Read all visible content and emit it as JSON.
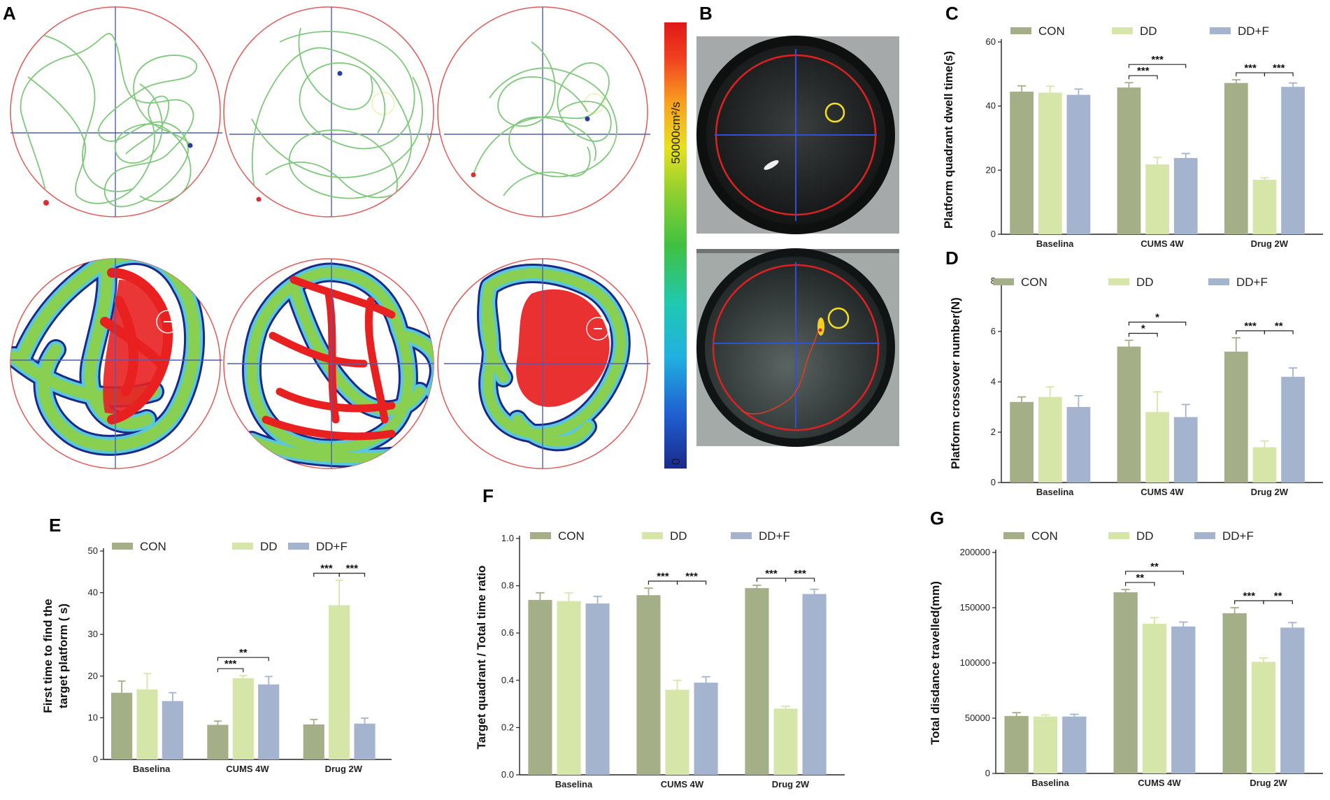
{
  "panels": {
    "A": "A",
    "B": "B",
    "C": "C",
    "D": "D",
    "E": "E",
    "F": "F",
    "G": "G"
  },
  "colorbar": {
    "max_label": "50000cm²/s",
    "min_label": "0"
  },
  "legend": [
    "CON",
    "DD",
    "DD+F"
  ],
  "colors": {
    "CON": "#a4af88",
    "DD": "#d6e6a8",
    "DDF": "#a4b4cf",
    "track": "#7ec87a",
    "pool_border": "#e05a5a",
    "axis_line": "#4f5fb0"
  },
  "chart_data": [
    {
      "id": "C",
      "type": "bar",
      "ylabel": "Platform quadrant dwell time(s)",
      "categories": [
        "Baselina",
        "CUMS 4W",
        "Drug 2W"
      ],
      "ylim": [
        0,
        60
      ],
      "yticks": [
        0,
        20,
        40,
        60
      ],
      "series": [
        {
          "name": "CON",
          "values": [
            44.5,
            45.8,
            47.2
          ],
          "errors": [
            1.8,
            1.5,
            1.0
          ]
        },
        {
          "name": "DD",
          "values": [
            44.2,
            21.8,
            17.0
          ],
          "errors": [
            2.0,
            2.2,
            0.6
          ]
        },
        {
          "name": "DD+F",
          "values": [
            43.5,
            23.8,
            46.0
          ],
          "errors": [
            1.8,
            1.4,
            1.2
          ]
        }
      ],
      "significance": [
        {
          "group": 1,
          "from": 0,
          "to": 1,
          "label": "***",
          "level": 1
        },
        {
          "group": 1,
          "from": 0,
          "to": 2,
          "label": "***",
          "level": 2
        },
        {
          "group": 2,
          "from": 0,
          "to": 1,
          "label": "***",
          "level": 1
        },
        {
          "group": 2,
          "from": 1,
          "to": 2,
          "label": "***",
          "level": 1
        }
      ]
    },
    {
      "id": "D",
      "type": "bar",
      "ylabel": "Platform crossover number(N)",
      "categories": [
        "Baselina",
        "CUMS 4W",
        "Drug 2W"
      ],
      "ylim": [
        0,
        8
      ],
      "yticks": [
        0,
        2,
        4,
        6,
        8
      ],
      "series": [
        {
          "name": "CON",
          "values": [
            3.2,
            5.4,
            5.2
          ],
          "errors": [
            0.2,
            0.25,
            0.55
          ]
        },
        {
          "name": "DD",
          "values": [
            3.4,
            2.8,
            1.4
          ],
          "errors": [
            0.4,
            0.8,
            0.25
          ]
        },
        {
          "name": "DD+F",
          "values": [
            3.0,
            2.6,
            4.2
          ],
          "errors": [
            0.45,
            0.5,
            0.35
          ]
        }
      ],
      "significance": [
        {
          "group": 1,
          "from": 0,
          "to": 1,
          "label": "*",
          "level": 1
        },
        {
          "group": 1,
          "from": 0,
          "to": 2,
          "label": "*",
          "level": 2
        },
        {
          "group": 2,
          "from": 0,
          "to": 1,
          "label": "***",
          "level": 1
        },
        {
          "group": 2,
          "from": 1,
          "to": 2,
          "label": "**",
          "level": 1
        }
      ]
    },
    {
      "id": "E",
      "type": "bar",
      "ylabel": [
        "First time to find the",
        "target platform ( s)"
      ],
      "categories": [
        "Baselina",
        "CUMS 4W",
        "Drug 2W"
      ],
      "ylim": [
        0,
        50
      ],
      "yticks": [
        0,
        10,
        20,
        30,
        40,
        50
      ],
      "series": [
        {
          "name": "CON",
          "values": [
            16.0,
            8.3,
            8.4
          ],
          "errors": [
            2.8,
            0.9,
            1.2
          ]
        },
        {
          "name": "DD",
          "values": [
            16.8,
            19.5,
            37.0
          ],
          "errors": [
            3.8,
            0.6,
            6.0
          ]
        },
        {
          "name": "DD+F",
          "values": [
            14.0,
            18.0,
            8.6
          ],
          "errors": [
            2.0,
            1.9,
            1.3
          ]
        }
      ],
      "significance": [
        {
          "group": 1,
          "from": 0,
          "to": 1,
          "label": "***",
          "level": 1
        },
        {
          "group": 1,
          "from": 0,
          "to": 2,
          "label": "**",
          "level": 2
        },
        {
          "group": 2,
          "from": 0,
          "to": 1,
          "label": "***",
          "level": 1
        },
        {
          "group": 2,
          "from": 1,
          "to": 2,
          "label": "***",
          "level": 1
        }
      ]
    },
    {
      "id": "F",
      "type": "bar",
      "ylabel": "Target quadrant / Total time ratio",
      "categories": [
        "Baselina",
        "CUMS 4W",
        "Drug 2W"
      ],
      "ylim": [
        0,
        1.0
      ],
      "yticks": [
        0.0,
        0.2,
        0.4,
        0.6,
        0.8,
        1.0
      ],
      "series": [
        {
          "name": "CON",
          "values": [
            0.74,
            0.76,
            0.79
          ],
          "errors": [
            0.03,
            0.03,
            0.012
          ]
        },
        {
          "name": "DD",
          "values": [
            0.735,
            0.36,
            0.28
          ],
          "errors": [
            0.035,
            0.04,
            0.01
          ]
        },
        {
          "name": "DD+F",
          "values": [
            0.725,
            0.39,
            0.765
          ],
          "errors": [
            0.03,
            0.025,
            0.02
          ]
        }
      ],
      "significance": [
        {
          "group": 1,
          "from": 0,
          "to": 1,
          "label": "***",
          "level": 1
        },
        {
          "group": 1,
          "from": 1,
          "to": 2,
          "label": "***",
          "level": 1
        },
        {
          "group": 2,
          "from": 0,
          "to": 1,
          "label": "***",
          "level": 1
        },
        {
          "group": 2,
          "from": 1,
          "to": 2,
          "label": "***",
          "level": 1
        }
      ]
    },
    {
      "id": "G",
      "type": "bar",
      "ylabel": "Total disdance travelled(mm)",
      "categories": [
        "Baselina",
        "CUMS 4W",
        "Drug 2W"
      ],
      "ylim": [
        0,
        200000
      ],
      "yticks": [
        0,
        50000,
        100000,
        150000,
        200000
      ],
      "series": [
        {
          "name": "CON",
          "values": [
            52000,
            164000,
            145000
          ],
          "errors": [
            3000,
            2500,
            5000
          ]
        },
        {
          "name": "DD",
          "values": [
            51500,
            135500,
            101000
          ],
          "errors": [
            1500,
            5500,
            3500
          ]
        },
        {
          "name": "DD+F",
          "values": [
            51500,
            133000,
            132000
          ],
          "errors": [
            2000,
            4000,
            4500
          ]
        }
      ],
      "significance": [
        {
          "group": 1,
          "from": 0,
          "to": 1,
          "label": "**",
          "level": 1
        },
        {
          "group": 1,
          "from": 0,
          "to": 2,
          "label": "**",
          "level": 2
        },
        {
          "group": 2,
          "from": 0,
          "to": 1,
          "label": "***",
          "level": 1
        },
        {
          "group": 2,
          "from": 1,
          "to": 2,
          "label": "**",
          "level": 1
        }
      ]
    }
  ]
}
